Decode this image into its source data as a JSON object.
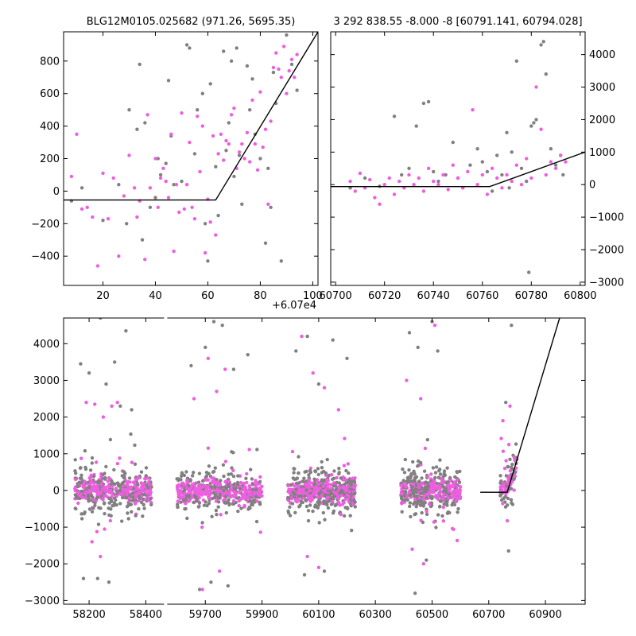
{
  "colors": {
    "magenta": "#ee5ee0",
    "gray": "#808080",
    "line": "#000000"
  },
  "chart_data": [
    {
      "id": "top-left",
      "type": "scatter",
      "title": "BLG12M0105.025682 (971.26, 5695.35)",
      "x_offset_label": "+6.07e4",
      "xlim": [
        5,
        102
      ],
      "ylim": [
        -580,
        980
      ],
      "xticks": [
        20,
        40,
        60,
        80,
        100
      ],
      "xtick_labels": [
        "20",
        "40",
        "60",
        "80",
        "100"
      ],
      "yticks": [
        -400,
        -200,
        0,
        200,
        400,
        600,
        800
      ],
      "model_line": [
        [
          5,
          -55
        ],
        [
          63,
          -55
        ],
        [
          102,
          980
        ]
      ],
      "series": [
        {
          "color": "gray",
          "x": [
            8,
            12,
            20,
            26,
            29,
            30,
            33,
            34,
            35,
            36,
            38,
            40,
            41,
            42,
            44,
            45,
            46,
            47,
            50,
            52,
            53,
            55,
            56,
            58,
            59,
            60,
            61,
            63,
            64,
            66,
            67,
            68,
            69,
            70,
            71,
            72,
            73,
            75,
            76,
            77,
            78,
            80,
            82,
            83,
            84,
            85,
            86,
            88,
            90,
            92,
            94
          ],
          "y": [
            -60,
            20,
            -180,
            40,
            -200,
            500,
            380,
            780,
            -300,
            420,
            -100,
            -40,
            200,
            100,
            170,
            680,
            340,
            40,
            60,
            900,
            880,
            230,
            500,
            600,
            -200,
            -430,
            660,
            150,
            -150,
            860,
            250,
            420,
            800,
            90,
            880,
            220,
            -80,
            770,
            500,
            690,
            350,
            200,
            -320,
            140,
            -100,
            730,
            540,
            -430,
            960,
            780,
            620
          ]
        },
        {
          "color": "magenta",
          "x": [
            8,
            10,
            12,
            14,
            16,
            18,
            20,
            22,
            24,
            26,
            28,
            30,
            32,
            33,
            34,
            36,
            37,
            38,
            40,
            41,
            42,
            43,
            44,
            45,
            46,
            47,
            48,
            49,
            50,
            51,
            52,
            53,
            54,
            55,
            56,
            57,
            58,
            59,
            60,
            61,
            62,
            63,
            64,
            65,
            66,
            67,
            68,
            69,
            70,
            71,
            72,
            73,
            74,
            75,
            76,
            77,
            78,
            79,
            80,
            81,
            82,
            83,
            84,
            85,
            86,
            87,
            88,
            89,
            90,
            91,
            92,
            93,
            94
          ],
          "y": [
            90,
            350,
            -110,
            -100,
            -160,
            -460,
            110,
            -170,
            80,
            -400,
            -30,
            220,
            20,
            -160,
            -60,
            -420,
            470,
            20,
            200,
            -100,
            80,
            140,
            60,
            -40,
            350,
            -370,
            40,
            -130,
            480,
            -110,
            40,
            300,
            -100,
            -170,
            460,
            120,
            400,
            -380,
            -50,
            -190,
            340,
            -270,
            230,
            350,
            190,
            310,
            290,
            470,
            510,
            140,
            240,
            290,
            200,
            360,
            180,
            560,
            290,
            130,
            610,
            270,
            380,
            -80,
            430,
            760,
            850,
            750,
            700,
            890,
            600,
            740,
            810,
            700,
            840
          ]
        }
      ]
    },
    {
      "id": "top-right",
      "type": "scatter",
      "title": "3 292 838.55 -8.000 -8 [60791.141, 60794.028]",
      "xlim": [
        60698,
        60802
      ],
      "ylim": [
        -3100,
        4700
      ],
      "xticks": [
        60700,
        60720,
        60740,
        60760,
        60780,
        60800
      ],
      "xtick_labels": [
        "60700",
        "60720",
        "60740",
        "60760",
        "60780",
        "60800"
      ],
      "yticks": [
        -3000,
        -2000,
        -1000,
        0,
        1000,
        2000,
        3000,
        4000
      ],
      "model_line": [
        [
          60698,
          -60
        ],
        [
          60763,
          -60
        ],
        [
          60802,
          1000
        ]
      ],
      "series": [
        {
          "color": "gray",
          "x": [
            60706,
            60712,
            60718,
            60724,
            60727,
            60730,
            60733,
            60736,
            60738,
            60740,
            60742,
            60745,
            60748,
            60750,
            60752,
            60755,
            60758,
            60760,
            60762,
            60764,
            60766,
            60768,
            60770,
            60771,
            60772,
            60774,
            60776,
            60778,
            60779,
            60780,
            60781,
            60782,
            60784,
            60785,
            60786,
            60788,
            60790,
            60792,
            60793
          ],
          "y": [
            -100,
            200,
            -50,
            2100,
            300,
            500,
            1800,
            2500,
            2550,
            400,
            100,
            300,
            1300,
            200,
            -100,
            600,
            1100,
            700,
            400,
            -200,
            900,
            300,
            1600,
            -100,
            1000,
            3800,
            500,
            100,
            -2700,
            1800,
            1900,
            2000,
            4300,
            4400,
            3400,
            1100,
            600,
            900,
            300
          ]
        },
        {
          "color": "magenta",
          "x": [
            60706,
            60708,
            60710,
            60712,
            60714,
            60716,
            60718,
            60720,
            60722,
            60724,
            60726,
            60728,
            60730,
            60732,
            60734,
            60736,
            60738,
            60740,
            60742,
            60744,
            60746,
            60748,
            60750,
            60752,
            60754,
            60756,
            60758,
            60760,
            60762,
            60764,
            60766,
            60768,
            60770,
            60772,
            60774,
            60776,
            60778,
            60780,
            60782,
            60784,
            60786,
            60788,
            60790,
            60792,
            60794
          ],
          "y": [
            100,
            -200,
            350,
            -100,
            150,
            -400,
            -600,
            0,
            200,
            -300,
            100,
            -100,
            300,
            0,
            200,
            -200,
            500,
            100,
            0,
            300,
            -150,
            600,
            200,
            -100,
            400,
            2300,
            0,
            300,
            -300,
            500,
            200,
            -100,
            300,
            100,
            600,
            0,
            800,
            200,
            3000,
            1700,
            300,
            700,
            500,
            900,
            700
          ]
        }
      ]
    },
    {
      "id": "bottom",
      "type": "scatter",
      "xlim": [
        58110,
        61040
      ],
      "ylim": [
        -3100,
        4700
      ],
      "x_break": [
        58470,
        59560
      ],
      "xticks": [
        58200,
        58400,
        59700,
        59900,
        60100,
        60300,
        60500,
        60700,
        60900
      ],
      "xtick_labels": [
        "58200",
        "58400",
        "59700",
        "59900",
        "60100",
        "60300",
        "60500",
        "60700",
        "60900"
      ],
      "yticks": [
        -3000,
        -2000,
        -1000,
        0,
        1000,
        2000,
        3000,
        4000
      ],
      "model_line": [
        [
          60670,
          -50
        ],
        [
          60765,
          -50
        ],
        [
          60950,
          4700
        ]
      ],
      "seasons": [
        [
          58150,
          58420
        ],
        [
          59600,
          59900
        ],
        [
          59990,
          60230
        ],
        [
          60390,
          60600
        ],
        [
          60740,
          60800
        ]
      ],
      "season_points": [
        520,
        520,
        520,
        480,
        110
      ],
      "outliers": [
        {
          "color": "gray",
          "x": [
            58170,
            58200,
            58240,
            58260,
            58290,
            58310,
            58330,
            58350,
            58180,
            58230,
            58270,
            59650,
            59700,
            59730,
            59760,
            59800,
            59850,
            59680,
            59720,
            59780,
            60020,
            60060,
            60100,
            60150,
            60200,
            60050,
            60120,
            60420,
            60450,
            60500,
            60520,
            60440,
            60480,
            60760,
            60780,
            60770
          ],
          "y": [
            3450,
            3200,
            4700,
            2900,
            3500,
            2300,
            4350,
            2200,
            -2400,
            -2400,
            -2500,
            3400,
            3900,
            4600,
            4500,
            3300,
            3700,
            -2700,
            -2500,
            -2600,
            3800,
            4200,
            2900,
            4100,
            3600,
            -2300,
            -2200,
            4300,
            3900,
            4600,
            3800,
            -2800,
            -1900,
            2400,
            4500,
            -1650
          ]
        },
        {
          "color": "magenta",
          "x": [
            58190,
            58220,
            58250,
            58280,
            58300,
            58240,
            58210,
            59660,
            59710,
            59740,
            59770,
            59690,
            59750,
            60040,
            60080,
            60120,
            60170,
            60060,
            60100,
            60410,
            60460,
            60510,
            60430,
            60470,
            60750,
            60775,
            60790
          ],
          "y": [
            2400,
            2350,
            2000,
            2300,
            2400,
            -1800,
            -1400,
            2500,
            3600,
            2700,
            3300,
            -2700,
            -2200,
            4200,
            3200,
            2800,
            2200,
            -1800,
            -2100,
            3000,
            2500,
            4500,
            -1600,
            -2000,
            1900,
            2300,
            900
          ]
        }
      ]
    }
  ]
}
